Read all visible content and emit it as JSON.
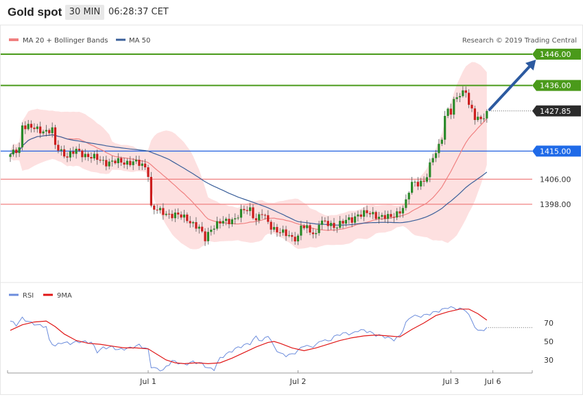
{
  "header": {
    "title": "Gold spot",
    "timeframe": "30 MIN",
    "time": "06:28:37 CET"
  },
  "colors": {
    "candle_up": "#2a8a2a",
    "candle_down": "#cc1d1d",
    "ma20": "#f08080",
    "ma50": "#3a5f9a",
    "band_fill": "#fde0e0",
    "resistance": "#4a9a1a",
    "pivot": "#2060e0",
    "support": "#f08080",
    "arrow": "#2c5aa0",
    "rsi": "#6b8cdc",
    "rsi_ma": "#e01515",
    "last_price": "#2b2b2b"
  },
  "chart_data": [
    {
      "type": "candlestick",
      "instrument": "Gold spot",
      "legend": [
        {
          "label": "MA 20 + Bollinger Bands",
          "color": "#f08080",
          "style": "band"
        },
        {
          "label": "MA 50",
          "color": "#3a5f9a",
          "style": "line"
        }
      ],
      "copyright": "Research © 2019 Trading Central",
      "x_labels": [
        {
          "label": "Jul 1",
          "index": 46
        },
        {
          "label": "Jul 2",
          "index": 96
        },
        {
          "label": "Jul 3",
          "index": 147
        },
        {
          "label": "Jul 6",
          "index": 161
        }
      ],
      "levels": [
        {
          "value": 1446.0,
          "label": "1446.00",
          "kind": "resistance"
        },
        {
          "value": 1436.0,
          "label": "1436.00",
          "kind": "resistance"
        },
        {
          "value": 1415.0,
          "label": "1415.00",
          "kind": "pivot"
        },
        {
          "value": 1406.0,
          "label": "1406.00",
          "kind": "support"
        },
        {
          "value": 1398.0,
          "label": "1398.00",
          "kind": "support"
        }
      ],
      "last_price": {
        "value": 1427.85,
        "label": "1427.85"
      },
      "forecast_arrow": {
        "from": {
          "index": 159,
          "price": 1427.85
        },
        "to": {
          "index": 174,
          "price": 1446.0
        }
      },
      "anchors": [
        [
          0,
          1413.5
        ],
        [
          3,
          1416
        ],
        [
          4,
          1423.5
        ],
        [
          8,
          1422
        ],
        [
          12,
          1421.5
        ],
        [
          14,
          1421.5
        ],
        [
          15,
          1416.5
        ],
        [
          19,
          1413.5
        ],
        [
          22,
          1415
        ],
        [
          26,
          1413.5
        ],
        [
          30,
          1412
        ],
        [
          32,
          1411.5
        ],
        [
          36,
          1411.5
        ],
        [
          41,
          1411.5
        ],
        [
          45,
          1410
        ],
        [
          46,
          1408
        ],
        [
          47,
          1397
        ],
        [
          50,
          1395.5
        ],
        [
          55,
          1394.5
        ],
        [
          59,
          1393.5
        ],
        [
          63,
          1390
        ],
        [
          65,
          1387
        ],
        [
          67,
          1390.5
        ],
        [
          70,
          1392
        ],
        [
          75,
          1393.5
        ],
        [
          78,
          1396
        ],
        [
          80,
          1396.5
        ],
        [
          82,
          1393
        ],
        [
          84,
          1395
        ],
        [
          85,
          1393.5
        ],
        [
          87,
          1391
        ],
        [
          90,
          1389
        ],
        [
          94,
          1387.5
        ],
        [
          96,
          1387.5
        ],
        [
          97,
          1391
        ],
        [
          100,
          1389.5
        ],
        [
          102,
          1388.5
        ],
        [
          103,
          1392.5
        ],
        [
          106,
          1391.5
        ],
        [
          108,
          1391
        ],
        [
          110,
          1392
        ],
        [
          114,
          1393
        ],
        [
          116,
          1395
        ],
        [
          119,
          1395
        ],
        [
          122,
          1394.5
        ],
        [
          125,
          1394
        ],
        [
          127,
          1393.5
        ],
        [
          128,
          1394.5
        ],
        [
          130,
          1396
        ],
        [
          132,
          1398.5
        ],
        [
          133,
          1402
        ],
        [
          134,
          1404.5
        ],
        [
          136,
          1405
        ],
        [
          138,
          1405.5
        ],
        [
          139,
          1407
        ],
        [
          140,
          1410
        ],
        [
          141,
          1413
        ],
        [
          142,
          1414.5
        ],
        [
          143,
          1417
        ],
        [
          144,
          1420
        ],
        [
          145,
          1426
        ],
        [
          146,
          1428
        ],
        [
          147,
          1427
        ],
        [
          148,
          1430.5
        ],
        [
          149,
          1432.5
        ],
        [
          150,
          1433.5
        ],
        [
          151,
          1434
        ],
        [
          152,
          1434.5
        ],
        [
          153,
          1429.5
        ],
        [
          154,
          1427.5
        ],
        [
          155,
          1425.5
        ],
        [
          157,
          1425.5
        ],
        [
          159,
          1427.85
        ]
      ],
      "ohlc_note": "candles interpolate between anchor closes; 160 candles",
      "candle_count": 160
    },
    {
      "type": "line",
      "indicator": "RSI",
      "legend": [
        {
          "label": "RSI",
          "color": "#6b8cdc"
        },
        {
          "label": "9MA",
          "color": "#e01515"
        }
      ],
      "y_ticks": [
        70,
        50,
        30
      ],
      "ylim": [
        15,
        85
      ],
      "overbought_level": 65,
      "rsi": [
        [
          0,
          72
        ],
        [
          2,
          68
        ],
        [
          4,
          75
        ],
        [
          7,
          70
        ],
        [
          10,
          67
        ],
        [
          12,
          66
        ],
        [
          13,
          51
        ],
        [
          15,
          45
        ],
        [
          17,
          49
        ],
        [
          20,
          48
        ],
        [
          23,
          50
        ],
        [
          27,
          49
        ],
        [
          29,
          39
        ],
        [
          31,
          43
        ],
        [
          34,
          44
        ],
        [
          36,
          41
        ],
        [
          40,
          43
        ],
        [
          43,
          46
        ],
        [
          46,
          41
        ],
        [
          47,
          23
        ],
        [
          49,
          20
        ],
        [
          51,
          19
        ],
        [
          54,
          29
        ],
        [
          58,
          25
        ],
        [
          61,
          28
        ],
        [
          64,
          26
        ],
        [
          66,
          21
        ],
        [
          68,
          20
        ],
        [
          70,
          32
        ],
        [
          73,
          38
        ],
        [
          75,
          42
        ],
        [
          78,
          46
        ],
        [
          80,
          48
        ],
        [
          82,
          55
        ],
        [
          84,
          50
        ],
        [
          86,
          57
        ],
        [
          88,
          44
        ],
        [
          90,
          37
        ],
        [
          92,
          35
        ],
        [
          94,
          36
        ],
        [
          96,
          40
        ],
        [
          98,
          46
        ],
        [
          100,
          44
        ],
        [
          102,
          46
        ],
        [
          104,
          52
        ],
        [
          106,
          50
        ],
        [
          108,
          55
        ],
        [
          110,
          58
        ],
        [
          112,
          59
        ],
        [
          114,
          58
        ],
        [
          116,
          62
        ],
        [
          118,
          62
        ],
        [
          120,
          60
        ],
        [
          122,
          57
        ],
        [
          124,
          56
        ],
        [
          126,
          54
        ],
        [
          128,
          52
        ],
        [
          130,
          56
        ],
        [
          132,
          70
        ],
        [
          134,
          78
        ],
        [
          136,
          77
        ],
        [
          138,
          78
        ],
        [
          140,
          80
        ],
        [
          142,
          82
        ],
        [
          144,
          84
        ],
        [
          146,
          87
        ],
        [
          148,
          86
        ],
        [
          150,
          85
        ],
        [
          152,
          84
        ],
        [
          154,
          72
        ],
        [
          156,
          61
        ],
        [
          158,
          63
        ],
        [
          159,
          64
        ]
      ],
      "rsi_ma": [
        [
          0,
          62
        ],
        [
          4,
          68
        ],
        [
          8,
          71
        ],
        [
          12,
          72
        ],
        [
          15,
          66
        ],
        [
          18,
          58
        ],
        [
          22,
          51
        ],
        [
          26,
          48
        ],
        [
          30,
          47
        ],
        [
          34,
          45
        ],
        [
          38,
          43
        ],
        [
          42,
          43
        ],
        [
          46,
          42
        ],
        [
          49,
          36
        ],
        [
          52,
          30
        ],
        [
          55,
          27
        ],
        [
          58,
          26
        ],
        [
          62,
          27
        ],
        [
          66,
          26
        ],
        [
          70,
          27
        ],
        [
          74,
          32
        ],
        [
          78,
          38
        ],
        [
          82,
          44
        ],
        [
          86,
          49
        ],
        [
          88,
          50
        ],
        [
          90,
          48
        ],
        [
          94,
          43
        ],
        [
          98,
          40
        ],
        [
          102,
          43
        ],
        [
          106,
          47
        ],
        [
          110,
          51
        ],
        [
          114,
          54
        ],
        [
          118,
          56
        ],
        [
          122,
          57
        ],
        [
          126,
          56
        ],
        [
          130,
          55
        ],
        [
          134,
          63
        ],
        [
          138,
          70
        ],
        [
          142,
          78
        ],
        [
          146,
          82
        ],
        [
          150,
          85
        ],
        [
          153,
          85
        ],
        [
          156,
          80
        ],
        [
          159,
          73
        ]
      ]
    }
  ]
}
